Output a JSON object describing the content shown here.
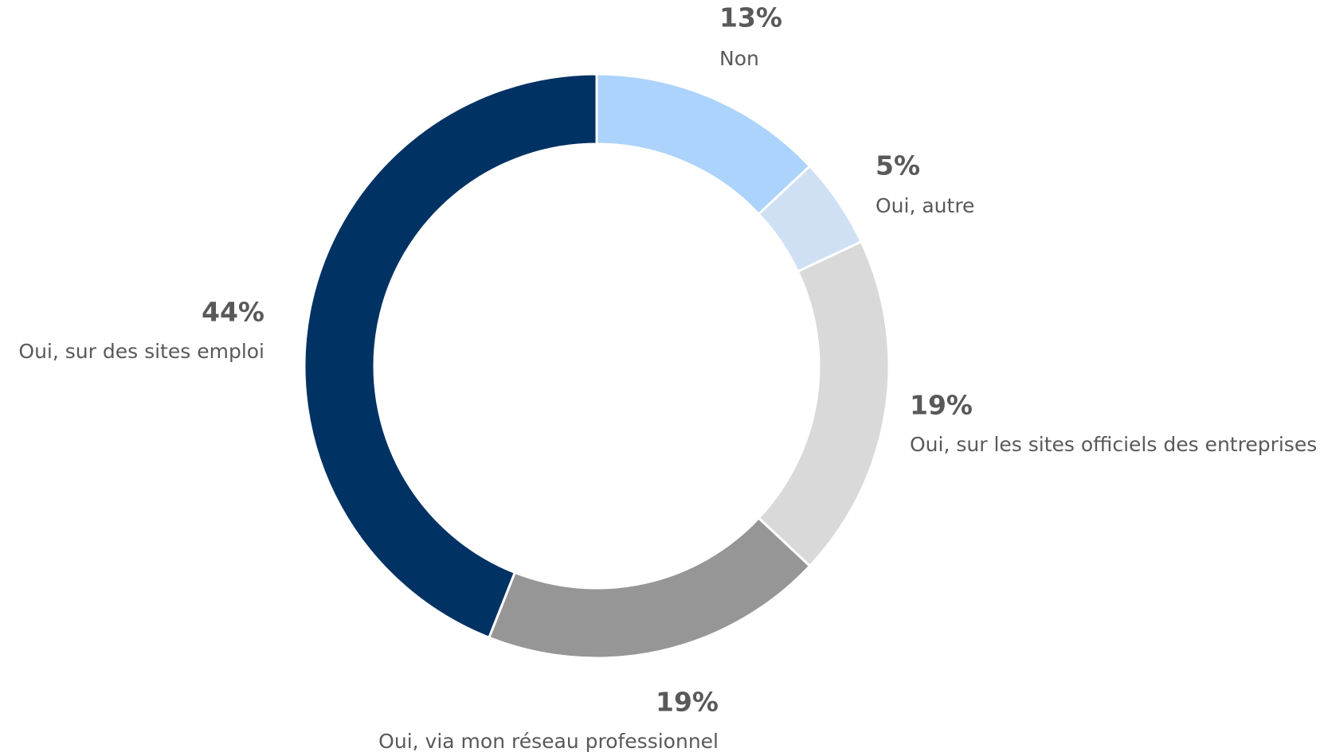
{
  "chart_data": {
    "type": "donut",
    "categories": [
      "Non",
      "Oui, autre",
      "Oui, sur les sites officiels des entreprises",
      "Oui, via mon réseau professionnel",
      "Oui, sur des sites emploi"
    ],
    "values": [
      13,
      5,
      19,
      19,
      44
    ],
    "value_labels": [
      "13%",
      "5%",
      "19%",
      "19%",
      "44%"
    ],
    "colors": [
      "#abd3fb",
      "#cfe0f5",
      "#d9d9d9",
      "#969696",
      "#003263"
    ]
  }
}
